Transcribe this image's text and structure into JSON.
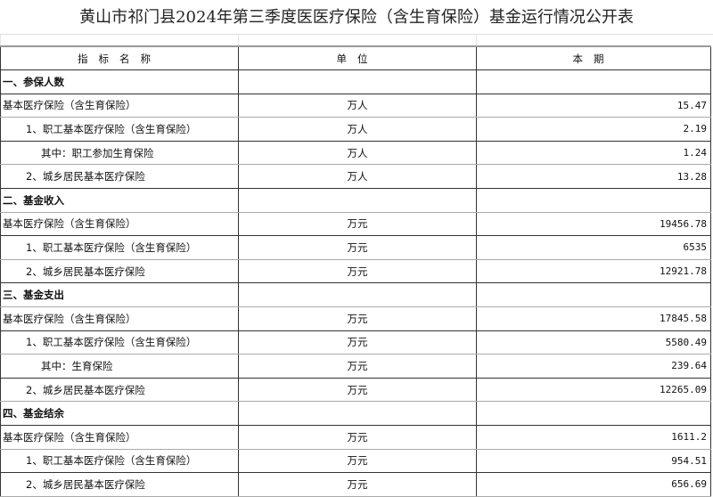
{
  "title": "黄山市祁门县2024年第三季度医医疗保险（含生育保险）基金运行情况公开表",
  "headers": [
    "指标名称",
    "单位",
    "本期"
  ],
  "rows": [
    {
      "name": "一、参保人数",
      "unit": "",
      "value": "",
      "level": "sec"
    },
    {
      "name": "基本医疗保险（含生育保险）",
      "unit": "万人",
      "value": "15.47",
      "level": "l0"
    },
    {
      "name": "1、职工基本医疗保险（含生育保险）",
      "unit": "万人",
      "value": "2.19",
      "level": "l1"
    },
    {
      "name": "其中：职工参加生育保险",
      "unit": "万人",
      "value": "1.24",
      "level": "l2"
    },
    {
      "name": "2、城乡居民基本医疗保险",
      "unit": "万人",
      "value": "13.28",
      "level": "l1"
    },
    {
      "name": "二、基金收入",
      "unit": "",
      "value": "",
      "level": "sec"
    },
    {
      "name": "基本医疗保险（含生育保险）",
      "unit": "万元",
      "value": "19456.78",
      "level": "l0"
    },
    {
      "name": "1、职工基本医疗保险（含生育保险）",
      "unit": "万元",
      "value": "6535",
      "level": "l1"
    },
    {
      "name": "2、城乡居民基本医疗保险",
      "unit": "万元",
      "value": "12921.78",
      "level": "l1"
    },
    {
      "name": "三、基金支出",
      "unit": "",
      "value": "",
      "level": "sec"
    },
    {
      "name": "基本医疗保险（含生育保险）",
      "unit": "万元",
      "value": "17845.58",
      "level": "l0"
    },
    {
      "name": "1、职工基本医疗保险（含生育保险）",
      "unit": "万元",
      "value": "5580.49",
      "level": "l1"
    },
    {
      "name": "其中：生育保险",
      "unit": "万元",
      "value": "239.64",
      "level": "l2"
    },
    {
      "name": "2、城乡居民基本医疗保险",
      "unit": "万元",
      "value": "12265.09",
      "level": "l1"
    },
    {
      "name": "四、基金结余",
      "unit": "",
      "value": "",
      "level": "sec"
    },
    {
      "name": "基本医疗保险（含生育保险）",
      "unit": "万元",
      "value": "1611.2",
      "level": "l0"
    },
    {
      "name": "1、职工基本医疗保险（含生育保险）",
      "unit": "万元",
      "value": "954.51",
      "level": "l1"
    },
    {
      "name": "2、城乡居民基本医疗保险",
      "unit": "万元",
      "value": "656.69",
      "level": "l1"
    }
  ]
}
